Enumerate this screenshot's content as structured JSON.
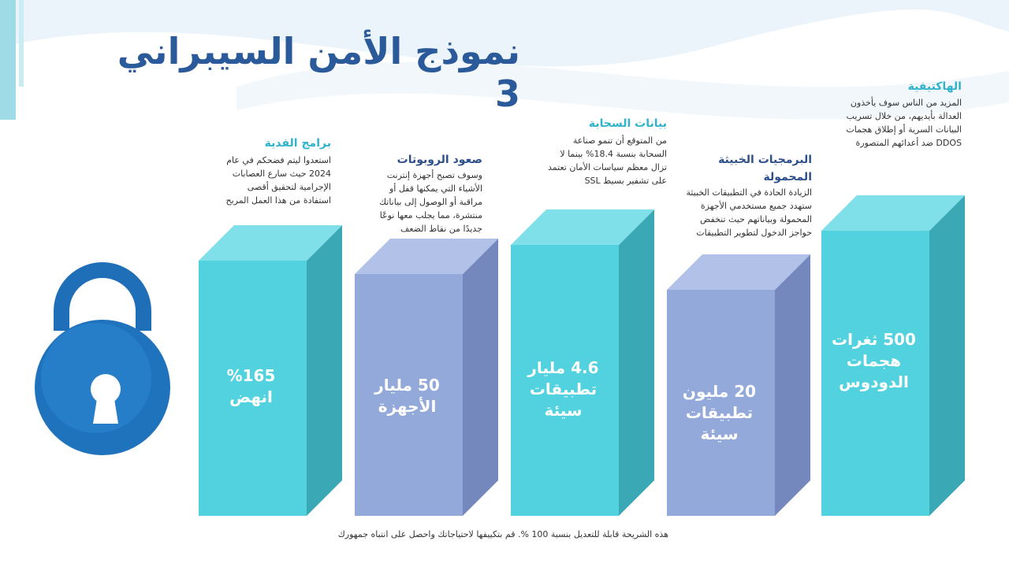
{
  "title": "نموذج الأمن السيبراني 3",
  "columns": [
    {
      "heading": "برامج الفدية",
      "text": "استعدوا ليتم فضحكم في عام 2024 حيث سارع العصابات الإجرامية لتحقيق أقصى استفادة من هذا العمل المربح",
      "bar_label": [
        "%165",
        "انهض"
      ]
    },
    {
      "heading": "صعود الروبوتات",
      "text": "وسوف تصبح أجهزة إنترنت الأشياء التي يمكنها قفل أو مراقبة أو الوصول إلى بياناتك منتشرة، مما يجلب معها نوعًا جديدًا من نقاط الضعف",
      "bar_label": [
        "50 مليار",
        "الأجهزة"
      ]
    },
    {
      "heading": "بيانات السحابة",
      "text": "من المتوقع أن تنمو صناعة السحابة بنسبة 18.4% بينما لا تزال معظم سياسات الأمان تعتمد على تشفير بسيط SSL",
      "bar_label": [
        "4.6 مليار",
        "تطبيقات سيئة"
      ]
    },
    {
      "heading": "البرمجيات الخبيثة المحمولة",
      "text": "الزيادة الحادة في التطبيقات الخبيثة ستهدد جميع مستخدمي الأجهزة المحمولة وبياناتهم حيث تنخفض حواجز الدخول لتطوير التطبيقات",
      "bar_label": [
        "20 مليون",
        "تطبيقات سيئة"
      ]
    },
    {
      "heading": "الهاكتيفية",
      "text": "المزيد من الناس سوف يأخذون العدالة بأيديهم، من خلال تسريب البيانات السرية أو إطلاق هجمات DDOS ضد أعدائهم المتصورة",
      "bar_label": [
        "500 ثغرات",
        "هجمات",
        "الدودوس"
      ]
    }
  ],
  "footer": "هذه الشريحة قابلة للتعديل بنسبة 100 %. قم بتكييفها لاحتياجاتك واحصل على انتباه جمهورك"
}
